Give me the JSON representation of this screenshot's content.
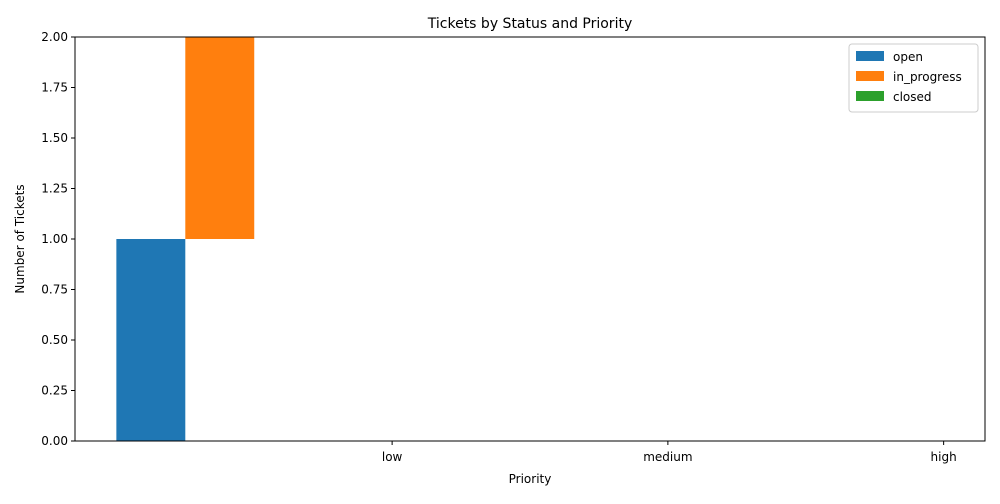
{
  "chart_data": {
    "type": "bar",
    "title": "Tickets by Status and Priority",
    "xlabel": "Priority",
    "ylabel": "Number of Tickets",
    "categories": [
      "low",
      "medium",
      "high"
    ],
    "ylim": [
      0,
      2
    ],
    "yticks": [
      "0.00",
      "0.25",
      "0.50",
      "0.75",
      "1.00",
      "1.25",
      "1.50",
      "1.75",
      "2.00"
    ],
    "series": [
      {
        "name": "open",
        "color": "#1f77b4",
        "bars": [
          {
            "x_offset": -1.0,
            "bottom": 0,
            "value": 1
          }
        ]
      },
      {
        "name": "in_progress",
        "color": "#ff7f0e",
        "bars": [
          {
            "x_offset": -0.75,
            "bottom": 1,
            "value": 1
          }
        ]
      },
      {
        "name": "closed",
        "color": "#2ca02c",
        "bars": []
      }
    ],
    "legend_position": "top-right",
    "grid": false
  }
}
